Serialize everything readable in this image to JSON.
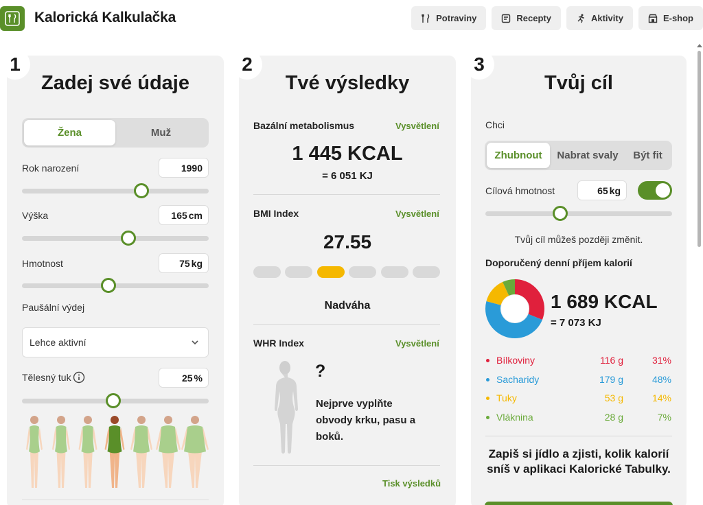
{
  "header": {
    "logo_icon": "cutlery-icon",
    "title": "Kalorická Kalkulačka",
    "nav": [
      {
        "label": "Potraviny",
        "icon": "cutlery-icon"
      },
      {
        "label": "Recepty",
        "icon": "recipe-icon"
      },
      {
        "label": "Aktivity",
        "icon": "running-icon"
      },
      {
        "label": "E-shop",
        "icon": "shop-icon"
      }
    ]
  },
  "inputs": {
    "step": "1",
    "title": "Zadej své údaje",
    "gender": {
      "options": [
        "Žena",
        "Muž"
      ],
      "selected": "Žena"
    },
    "birth_year": {
      "label": "Rok narození",
      "value": "1990",
      "slider_fraction": 0.64
    },
    "height": {
      "label": "Výška",
      "value": "165",
      "unit": "cm",
      "slider_fraction": 0.57
    },
    "weight": {
      "label": "Hmotnost",
      "value": "75",
      "unit": "kg",
      "slider_fraction": 0.465
    },
    "activity": {
      "label": "Paušální výdej",
      "value": "Lehce aktivní"
    },
    "body_fat": {
      "label": "Tělesný tuk",
      "value": "25",
      "unit": "%",
      "slider_fraction": 0.49
    },
    "body_types_selected": 3
  },
  "results": {
    "step": "2",
    "title": "Tvé výsledky",
    "explain_label": "Vysvětlení",
    "bmr": {
      "label": "Bazální metabolismus",
      "kcal": "1 445 KCAL",
      "kj": "= 6 051 KJ"
    },
    "bmi": {
      "label": "BMI Index",
      "value": "27.55",
      "category": "Nadváha",
      "active_segment": 2,
      "segments": 6
    },
    "whr": {
      "label": "WHR Index",
      "value": "?",
      "message": [
        "Nejprve vyplňte",
        "obvody krku, pasu a",
        "boků."
      ]
    },
    "print_label": "Tisk výsledků"
  },
  "goal": {
    "step": "3",
    "title": "Tvůj cíl",
    "want_label": "Chci",
    "options": [
      "Zhubnout",
      "Nabrat svaly",
      "Být fit"
    ],
    "selected": "Zhubnout",
    "target_weight": {
      "label": "Cílová hmotnost",
      "value": "65",
      "unit": "kg",
      "toggle_on": true,
      "slider_fraction": 0.4
    },
    "hint": "Tvůj cíl můžeš později změnit.",
    "recommend_label": "Doporučený denní příjem kalorií",
    "kcal": "1 689 KCAL",
    "kj": "= 7 073 KJ",
    "macros": [
      {
        "name": "Bílkoviny",
        "grams": "116 g",
        "pct": "31%",
        "percent": 31,
        "color": "#e0203c"
      },
      {
        "name": "Sacharidy",
        "grams": "179 g",
        "pct": "48%",
        "percent": 48,
        "color": "#2a9bd8"
      },
      {
        "name": "Tuky",
        "grams": "53 g",
        "pct": "14%",
        "percent": 14,
        "color": "#f5b800"
      },
      {
        "name": "Vláknina",
        "grams": "28 g",
        "pct": "7%",
        "percent": 7,
        "color": "#6aaa3a"
      }
    ],
    "cta": "Zapiš si jídlo a zjisti, kolik kalorií sníš v aplikaci Kalorické Tabulky."
  }
}
